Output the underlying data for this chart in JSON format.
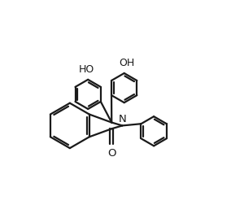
{
  "bg_color": "#ffffff",
  "line_color": "#1a1a1a",
  "line_width": 1.6,
  "figsize": [
    3.0,
    2.68
  ],
  "dpi": 100,
  "xlim": [
    0,
    10
  ],
  "ylim": [
    0,
    9
  ]
}
